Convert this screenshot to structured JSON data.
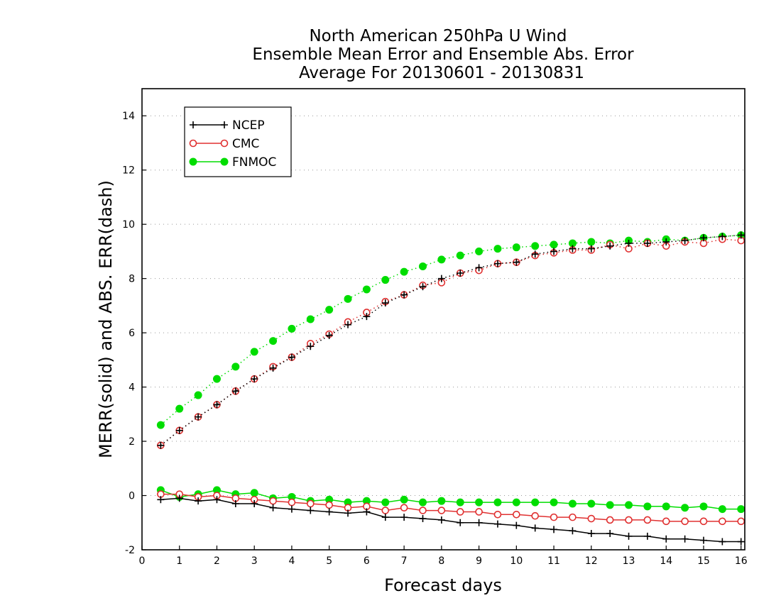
{
  "chart_data": {
    "type": "line",
    "title_lines": [
      "North American 250hPa U Wind",
      "Ensemble Mean Error and Ensemble Abs. Error",
      "Average For 20130601 - 20130831"
    ],
    "xlabel": "Forecast days",
    "ylabel": "MERR(solid) and ABS. ERR(dash)",
    "xlim": [
      0,
      16.1
    ],
    "ylim": [
      -2,
      15
    ],
    "xticks": [
      0,
      1,
      2,
      3,
      4,
      5,
      6,
      7,
      8,
      9,
      10,
      11,
      12,
      13,
      14,
      15,
      16
    ],
    "xtick_labels": [
      "0",
      "1",
      "2",
      "3",
      "4",
      "5",
      "6",
      "7",
      "8",
      "9",
      "10",
      "11",
      "12",
      "13",
      "14",
      "15",
      "16"
    ],
    "yticks": [
      -2,
      0,
      2,
      4,
      6,
      8,
      10,
      12,
      14
    ],
    "ytick_labels": [
      "-2",
      "0",
      "2",
      "4",
      "6",
      "8",
      "10",
      "12",
      "14"
    ],
    "grid": "horizontal dotted",
    "legend_position": "top-left",
    "x": [
      0.5,
      1.0,
      1.5,
      2.0,
      2.5,
      3.0,
      3.5,
      4.0,
      4.5,
      5.0,
      5.5,
      6.0,
      6.5,
      7.0,
      7.5,
      8.0,
      8.5,
      9.0,
      9.5,
      10.0,
      10.5,
      11.0,
      11.5,
      12.0,
      12.5,
      13.0,
      13.5,
      14.0,
      14.5,
      15.0,
      15.5,
      16.0
    ],
    "series": [
      {
        "name": "NCEP",
        "color": "#000000",
        "marker": "plus",
        "mean_error": [
          -0.15,
          -0.1,
          -0.2,
          -0.15,
          -0.3,
          -0.3,
          -0.45,
          -0.5,
          -0.55,
          -0.6,
          -0.65,
          -0.6,
          -0.8,
          -0.8,
          -0.85,
          -0.9,
          -1.0,
          -1.0,
          -1.05,
          -1.1,
          -1.2,
          -1.25,
          -1.3,
          -1.4,
          -1.4,
          -1.5,
          -1.5,
          -1.6,
          -1.6,
          -1.65,
          -1.7,
          -1.7
        ],
        "abs_error": [
          1.85,
          2.4,
          2.9,
          3.35,
          3.85,
          4.3,
          4.7,
          5.1,
          5.5,
          5.9,
          6.3,
          6.6,
          7.1,
          7.4,
          7.7,
          8.0,
          8.2,
          8.4,
          8.55,
          8.6,
          8.9,
          9.0,
          9.1,
          9.1,
          9.2,
          9.3,
          9.3,
          9.35,
          9.4,
          9.5,
          9.55,
          9.6
        ]
      },
      {
        "name": "CMC",
        "color": "#e03030",
        "marker": "open-circle",
        "mean_error": [
          0.05,
          0.05,
          -0.05,
          0.0,
          -0.1,
          -0.15,
          -0.2,
          -0.25,
          -0.3,
          -0.35,
          -0.45,
          -0.4,
          -0.55,
          -0.45,
          -0.55,
          -0.55,
          -0.6,
          -0.6,
          -0.7,
          -0.7,
          -0.75,
          -0.8,
          -0.8,
          -0.85,
          -0.9,
          -0.9,
          -0.9,
          -0.95,
          -0.95,
          -0.95,
          -0.95,
          -0.95
        ],
        "abs_error": [
          1.85,
          2.4,
          2.9,
          3.35,
          3.85,
          4.3,
          4.75,
          5.1,
          5.6,
          5.95,
          6.4,
          6.75,
          7.15,
          7.4,
          7.75,
          7.85,
          8.2,
          8.3,
          8.55,
          8.6,
          8.85,
          8.95,
          9.05,
          9.05,
          9.25,
          9.1,
          9.3,
          9.2,
          9.35,
          9.3,
          9.45,
          9.4
        ]
      },
      {
        "name": "FNMOC",
        "color": "#00dd00",
        "marker": "filled-circle",
        "mean_error": [
          0.2,
          -0.05,
          0.05,
          0.2,
          0.05,
          0.1,
          -0.1,
          -0.05,
          -0.2,
          -0.15,
          -0.25,
          -0.2,
          -0.25,
          -0.15,
          -0.25,
          -0.2,
          -0.25,
          -0.25,
          -0.25,
          -0.25,
          -0.25,
          -0.25,
          -0.3,
          -0.3,
          -0.35,
          -0.35,
          -0.4,
          -0.4,
          -0.45,
          -0.4,
          -0.5,
          -0.5
        ],
        "abs_error": [
          2.6,
          3.2,
          3.7,
          4.3,
          4.75,
          5.3,
          5.7,
          6.15,
          6.5,
          6.85,
          7.25,
          7.6,
          7.95,
          8.25,
          8.45,
          8.7,
          8.85,
          9.0,
          9.1,
          9.15,
          9.2,
          9.25,
          9.3,
          9.35,
          9.3,
          9.4,
          9.35,
          9.45,
          9.4,
          9.5,
          9.55,
          9.6
        ]
      }
    ]
  }
}
